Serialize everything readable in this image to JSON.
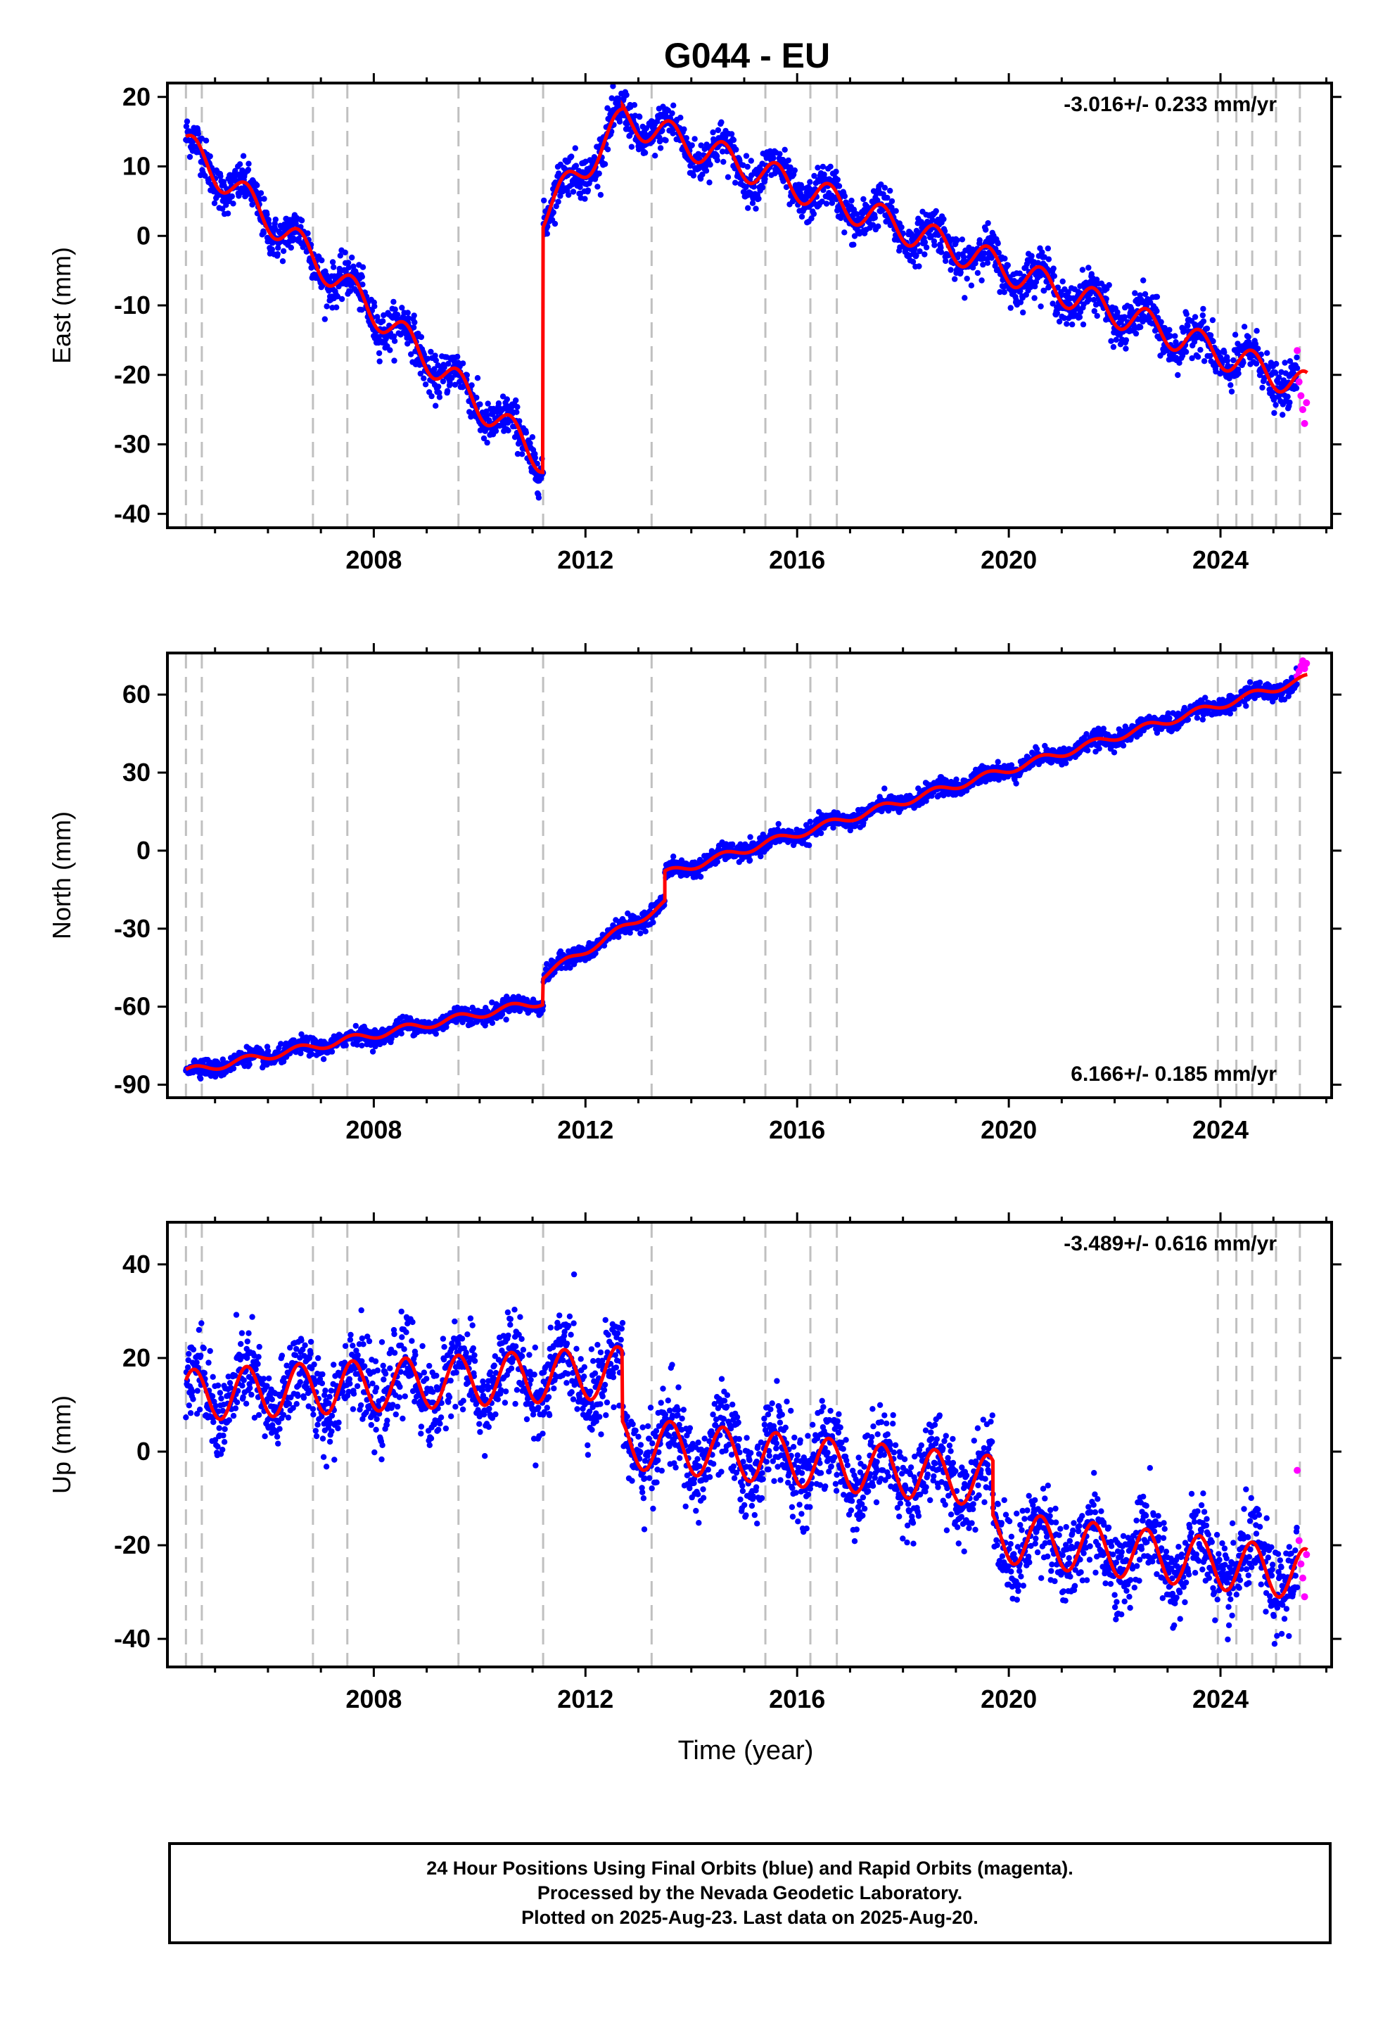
{
  "title": "G044 - EU",
  "xlabel": "Time (year)",
  "colors": {
    "final": "#0000ff",
    "rapid": "#ff00ff",
    "model": "#ff0000",
    "event": "#c0c0c0"
  },
  "footer": [
    "24 Hour Positions Using Final Orbits (blue) and Rapid Orbits (magenta).",
    "Processed by the Nevada Geodetic Laboratory.",
    "Plotted on 2025-Aug-23. Last data on 2025-Aug-20."
  ],
  "chart_data": [
    {
      "type": "scatter",
      "component": "east",
      "ylabel": "East (mm)",
      "rate": "-3.016+/- 0.233 mm/yr",
      "rate_position": "top-right",
      "xlim": [
        2004.1,
        2026.1
      ],
      "ylim": [
        -42,
        22
      ],
      "xticks": [
        2008,
        2012,
        2016,
        2020,
        2024
      ],
      "yticks": [
        -40,
        -30,
        -20,
        -10,
        0,
        10,
        20
      ],
      "event_lines": [
        2004.45,
        2004.75,
        2006.85,
        2007.5,
        2009.6,
        2011.2,
        2013.25,
        2015.4,
        2016.25,
        2016.75,
        2023.95,
        2024.3,
        2024.6,
        2025.05,
        2025.5
      ],
      "model": {
        "segments": [
          {
            "start": 2004.45,
            "end": 2011.2,
            "v0": 13,
            "rate": -6.7
          },
          {
            "start": 2011.2,
            "end": 2012.7,
            "v0": 3,
            "rate": 9.0
          },
          {
            "start": 2012.7,
            "end": 2025.65,
            "v0": 17,
            "rate": -3.0
          }
        ],
        "seasonal_amp": 2.2,
        "scatter": 1.5
      },
      "rapid": {
        "start": 2025.45,
        "values": [
          -16.5,
          -21,
          -23,
          -25,
          -27,
          -24
        ]
      }
    },
    {
      "type": "scatter",
      "component": "north",
      "ylabel": "North (mm)",
      "rate": "6.166+/- 0.185 mm/yr",
      "rate_position": "bottom-right",
      "xlim": [
        2004.1,
        2026.1
      ],
      "ylim": [
        -95,
        76
      ],
      "xticks": [
        2008,
        2012,
        2016,
        2020,
        2024
      ],
      "yticks": [
        -90,
        -60,
        -30,
        0,
        30,
        60
      ],
      "event_lines": [
        2004.45,
        2004.75,
        2006.85,
        2007.5,
        2009.6,
        2011.2,
        2013.25,
        2015.4,
        2016.25,
        2016.75,
        2023.95,
        2024.3,
        2024.6,
        2025.05,
        2025.5
      ],
      "model": {
        "segments": [
          {
            "start": 2004.45,
            "end": 2011.2,
            "v0": -85,
            "rate": 4.0
          },
          {
            "start": 2011.2,
            "end": 2013.5,
            "v0": -48,
            "rate": 12.0
          },
          {
            "start": 2013.5,
            "end": 2025.65,
            "v0": -9,
            "rate": 6.2
          }
        ],
        "seasonal_amp": 1.5,
        "scatter": 1.6
      },
      "rapid": {
        "start": 2025.45,
        "values": [
          67,
          69,
          71,
          73,
          70,
          72
        ]
      }
    },
    {
      "type": "scatter",
      "component": "up",
      "ylabel": "Up (mm)",
      "rate": "-3.489+/- 0.616 mm/yr",
      "rate_position": "top-right",
      "xlim": [
        2004.1,
        2026.1
      ],
      "ylim": [
        -46,
        49
      ],
      "xticks": [
        2008,
        2012,
        2016,
        2020,
        2024
      ],
      "yticks": [
        -40,
        -20,
        0,
        20,
        40
      ],
      "event_lines": [
        2004.45,
        2004.75,
        2006.85,
        2007.5,
        2009.6,
        2011.2,
        2013.25,
        2015.4,
        2016.25,
        2016.75,
        2023.95,
        2024.3,
        2024.6,
        2025.05,
        2025.5
      ],
      "model": {
        "segments": [
          {
            "start": 2004.45,
            "end": 2012.7,
            "v0": 12,
            "rate": 0.6
          },
          {
            "start": 2012.7,
            "end": 2019.7,
            "v0": 2,
            "rate": -1.2
          },
          {
            "start": 2019.7,
            "end": 2025.65,
            "v0": -18,
            "rate": -1.4
          }
        ],
        "seasonal_amp": 5.5,
        "scatter": 4.5
      },
      "rapid": {
        "start": 2025.45,
        "values": [
          -4,
          -19,
          -24,
          -27,
          -31,
          -22
        ]
      }
    }
  ]
}
